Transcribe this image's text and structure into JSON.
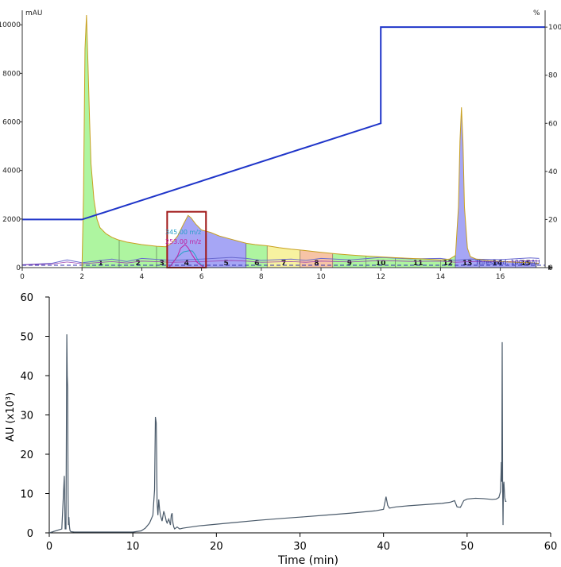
{
  "chart_data": [
    {
      "type": "area",
      "title": "",
      "ylabel_left": "mAU",
      "ylabel_right": "%",
      "xlim": [
        0,
        17.5
      ],
      "ylim_left": [
        0,
        10400
      ],
      "ylim_right": [
        0,
        105
      ],
      "x_ticks": [
        "0",
        "2",
        "4",
        "6",
        "8",
        "10",
        "12",
        "14",
        "16"
      ],
      "y_ticks_left": [
        "0",
        "2000",
        "4000",
        "6000",
        "8000",
        "10000"
      ],
      "y_ticks_right": [
        "0",
        "20",
        "40",
        "60",
        "80",
        "100"
      ],
      "annotations": [
        "345.00 m/z",
        "253.00 m/z",
        "Threshold: 100 mAU"
      ],
      "colors": {
        "uv_line": "#c8a020",
        "gradient_line": "#1f35c9",
        "highlight_box": "#a01818",
        "fraction_green": "#aef5a0",
        "fraction_blue": "#a6a6f5",
        "fraction_yellow": "#f7f2a0",
        "fraction_orange": "#f7c4a6",
        "fraction_pink": "#f5a6c8",
        "ms_345": "#2aa0c8",
        "ms_253": "#c020a0",
        "trace_violet": "#6a6ad0",
        "trace_purple": "#9a40b0"
      },
      "fractions": [
        {
          "label": "1",
          "start": 2.0,
          "end": 3.25,
          "color": "green"
        },
        {
          "label": "2",
          "start": 3.25,
          "end": 4.5,
          "color": "green"
        },
        {
          "label": "3",
          "start": 4.5,
          "end": 4.85,
          "color": "green"
        },
        {
          "label": "4",
          "start": 4.85,
          "end": 6.15,
          "color": "blue"
        },
        {
          "label": "5",
          "start": 6.15,
          "end": 7.5,
          "color": "blue"
        },
        {
          "label": "6",
          "start": 7.5,
          "end": 8.2,
          "color": "green"
        },
        {
          "label": "7",
          "start": 8.2,
          "end": 9.3,
          "color": "yellow"
        },
        {
          "label": "8",
          "start": 9.3,
          "end": 10.4,
          "color": "orange"
        },
        {
          "label": "9",
          "start": 10.4,
          "end": 11.5,
          "color": "green"
        },
        {
          "label": "10",
          "start": 11.5,
          "end": 12.5,
          "color": "green"
        },
        {
          "label": "11",
          "start": 12.5,
          "end": 14.0,
          "color": "green"
        },
        {
          "label": "12",
          "start": 14.0,
          "end": 14.5,
          "color": "green"
        },
        {
          "label": "13",
          "start": 14.5,
          "end": 15.3,
          "color": "blue"
        },
        {
          "label": "14",
          "start": 15.3,
          "end": 16.5,
          "color": "blue"
        },
        {
          "label": "15",
          "start": 16.5,
          "end": 17.2,
          "color": "blue"
        }
      ],
      "uv_trace": {
        "x": [
          2.0,
          2.05,
          2.1,
          2.15,
          2.2,
          2.25,
          2.3,
          2.4,
          2.5,
          2.6,
          2.8,
          3.0,
          3.2,
          3.5,
          4.0,
          4.5,
          4.8,
          5.0,
          5.2,
          5.4,
          5.55,
          5.65,
          5.8,
          6.0,
          6.3,
          6.6,
          6.9,
          7.2,
          7.5,
          7.8,
          8.2,
          8.6,
          9.0,
          9.5,
          10.0,
          10.5,
          11.0,
          11.5,
          12.0,
          12.5,
          13.0,
          13.5,
          14.0,
          14.3,
          14.5,
          14.6,
          14.65,
          14.7,
          14.75,
          14.8,
          14.9,
          15.0,
          15.2,
          15.5,
          16.0,
          16.5,
          17.0,
          17.3
        ],
        "y": [
          0,
          3000,
          9000,
          10400,
          8400,
          6200,
          4300,
          2800,
          2000,
          1650,
          1400,
          1250,
          1150,
          1050,
          950,
          880,
          860,
          1000,
          1300,
          1800,
          2150,
          2050,
          1800,
          1550,
          1450,
          1300,
          1200,
          1100,
          1000,
          950,
          900,
          820,
          760,
          700,
          630,
          570,
          520,
          480,
          440,
          410,
          380,
          350,
          320,
          350,
          500,
          2500,
          5200,
          6600,
          5200,
          2500,
          800,
          450,
          350,
          300,
          250,
          220,
          200,
          180
        ]
      },
      "gradient_percent": {
        "x": [
          0,
          2.0,
          12.0,
          12.0,
          17.5
        ],
        "y": [
          20,
          20,
          60,
          100,
          100
        ]
      },
      "ms_345_trace": {
        "x": [
          4.9,
          5.0,
          5.2,
          5.4,
          5.6,
          5.7,
          5.8,
          5.9,
          6.0,
          6.1
        ],
        "y": [
          0,
          150,
          450,
          650,
          700,
          680,
          500,
          250,
          100,
          0
        ]
      },
      "ms_253_trace": {
        "x": [
          4.9,
          5.0,
          5.2,
          5.3,
          5.45,
          5.55,
          5.7,
          5.85,
          6.0,
          6.1
        ],
        "y": [
          0,
          120,
          480,
          800,
          950,
          820,
          500,
          220,
          80,
          0
        ]
      },
      "baseline_trace": {
        "x": [
          0,
          1.0,
          1.5,
          2.0,
          3.0,
          3.5,
          4.0,
          5.0,
          6.0,
          7.0,
          7.5,
          8.0,
          9.0,
          9.5,
          10.0,
          11.0,
          12.0,
          13.0,
          14.0,
          14.5,
          15.0,
          16.0,
          17.0,
          17.3
        ],
        "y": [
          120,
          180,
          320,
          200,
          350,
          250,
          380,
          300,
          350,
          420,
          380,
          300,
          350,
          300,
          380,
          320,
          420,
          360,
          380,
          300,
          350,
          330,
          400,
          380
        ]
      },
      "threshold_level": 100,
      "highlight_box": {
        "x0": 4.85,
        "x1": 6.15,
        "y0": 0,
        "y1": 2300
      }
    },
    {
      "type": "line",
      "title": "",
      "xlabel": "Time (min)",
      "ylabel": "AU (x10³)",
      "xlim": [
        0,
        60
      ],
      "ylim": [
        0,
        60
      ],
      "x_ticks": [
        "0",
        "10",
        "20",
        "30",
        "40",
        "50",
        "60"
      ],
      "y_ticks": [
        "0",
        "10",
        "20",
        "30",
        "40",
        "50",
        "60"
      ],
      "line_color": "#4a5a6a",
      "series": [
        {
          "x": [
            0,
            1.5,
            1.8,
            1.9,
            2.0,
            2.1,
            2.15,
            2.2,
            2.25,
            2.3,
            2.35,
            2.4,
            2.45,
            2.5,
            2.6,
            3.0,
            5.0,
            8.0,
            10.0,
            11.0,
            11.5,
            12.0,
            12.4,
            12.6,
            12.7,
            12.8,
            12.85,
            12.9,
            13.0,
            13.1,
            13.2,
            13.3,
            13.5,
            13.7,
            13.9,
            14.0,
            14.1,
            14.3,
            14.5,
            14.6,
            14.7,
            14.8,
            14.9,
            15.0,
            15.3,
            15.6,
            16.0,
            17.0,
            18.0,
            20.0,
            22.0,
            25.0,
            28.0,
            30.0,
            33.0,
            36.0,
            39.0,
            40.0,
            40.3,
            40.5,
            40.7,
            41.0,
            41.5,
            43.0,
            45.0,
            47.0,
            48.0,
            48.5,
            48.8,
            49.2,
            49.6,
            50.0,
            51.0,
            52.0,
            53.0,
            53.5,
            53.8,
            54.0,
            54.1,
            54.15,
            54.2,
            54.25,
            54.3,
            54.35,
            54.4,
            54.5,
            54.6,
            54.7
          ],
          "y": [
            0,
            1.0,
            14.5,
            1.0,
            1.0,
            50.5,
            40.0,
            37.0,
            10.0,
            2.0,
            4.0,
            2.0,
            1.0,
            0.5,
            0.3,
            0.2,
            0.2,
            0.2,
            0.2,
            0.5,
            1.2,
            2.5,
            4.5,
            11.0,
            29.5,
            28.0,
            20.0,
            8.0,
            4.5,
            8.5,
            6.0,
            4.5,
            3.0,
            5.5,
            4.0,
            3.0,
            2.5,
            3.5,
            2.0,
            4.5,
            5.0,
            2.5,
            1.5,
            1.0,
            1.5,
            1.0,
            1.2,
            1.5,
            1.8,
            2.2,
            2.6,
            3.2,
            3.7,
            4.0,
            4.5,
            5.0,
            5.6,
            6.0,
            9.2,
            7.0,
            6.3,
            6.4,
            6.6,
            6.9,
            7.2,
            7.5,
            7.8,
            8.2,
            6.6,
            6.5,
            8.2,
            8.6,
            8.8,
            8.7,
            8.5,
            8.6,
            9.0,
            10.5,
            18.0,
            13.0,
            48.5,
            12.0,
            2.0,
            12.0,
            13.0,
            9.0,
            8.0,
            8.0
          ]
        }
      ]
    }
  ]
}
